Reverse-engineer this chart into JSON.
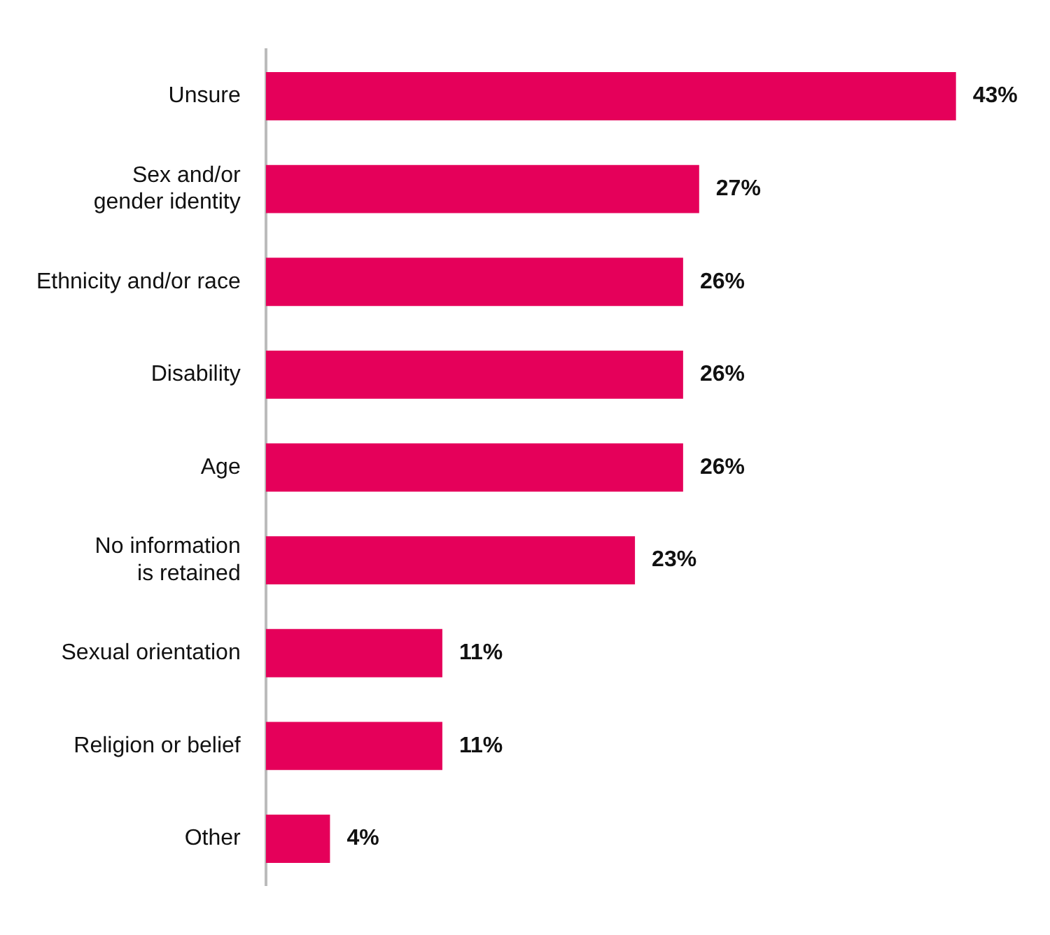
{
  "chart_data": {
    "type": "bar",
    "orientation": "horizontal",
    "categories": [
      "Unsure",
      "Sex and/or\ngender identity",
      "Ethnicity and/or race",
      "Disability",
      "Age",
      "No information\nis retained",
      "Sexual orientation",
      "Religion or belief",
      "Other"
    ],
    "values": [
      43,
      27,
      26,
      26,
      26,
      23,
      11,
      11,
      4
    ],
    "value_labels": [
      "43%",
      "27%",
      "26%",
      "26%",
      "26%",
      "23%",
      "11%",
      "11%",
      "4%"
    ],
    "color": "#e5005a",
    "legend": false
  }
}
